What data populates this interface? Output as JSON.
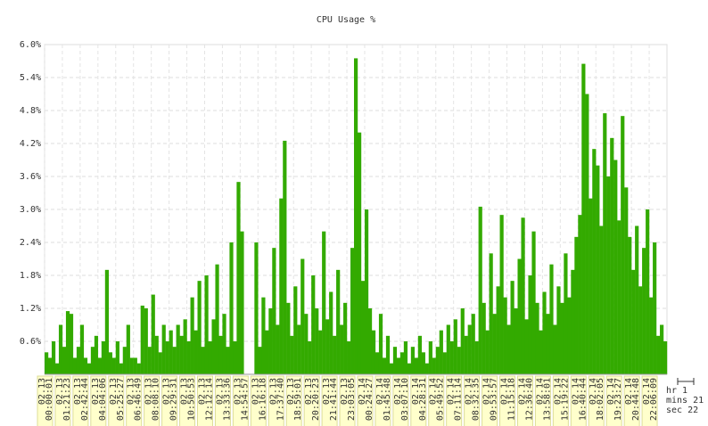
{
  "chart_data": {
    "type": "bar",
    "title": "CPU Usage %",
    "color": "#33aa00",
    "grid": true,
    "ylim": [
      0,
      6
    ],
    "yticks": [
      {
        "value": 0.6,
        "label": "0.6%"
      },
      {
        "value": 1.2,
        "label": "1.2%"
      },
      {
        "value": 1.8,
        "label": "1.8%"
      },
      {
        "value": 2.4,
        "label": "2.4%"
      },
      {
        "value": 3,
        "label": "3.0%"
      },
      {
        "value": 3.6,
        "label": "3.6%"
      },
      {
        "value": 4.2,
        "label": "4.2%"
      },
      {
        "value": 4.8,
        "label": "4.8%"
      },
      {
        "value": 5.4,
        "label": "5.4%"
      },
      {
        "value": 6,
        "label": "6.0%"
      }
    ],
    "xlim": [
      0,
      175
    ],
    "xticks": [
      {
        "value": 0,
        "label": [
          "02.13",
          "00:00:01"
        ]
      },
      {
        "value": 5,
        "label": [
          "02.13",
          "01:21:23"
        ]
      },
      {
        "value": 10,
        "label": [
          "02.13",
          "02:42:44"
        ]
      },
      {
        "value": 15,
        "label": [
          "02.13",
          "04:04:06"
        ]
      },
      {
        "value": 20,
        "label": [
          "02.13",
          "05:25:27"
        ]
      },
      {
        "value": 25,
        "label": [
          "02.13",
          "06:46:49"
        ]
      },
      {
        "value": 30,
        "label": [
          "02.13",
          "08:08:10"
        ]
      },
      {
        "value": 35,
        "label": [
          "02.13",
          "09:29:31"
        ]
      },
      {
        "value": 40,
        "label": [
          "02.13",
          "10:50:53"
        ]
      },
      {
        "value": 45,
        "label": [
          "02.13",
          "12:12:14"
        ]
      },
      {
        "value": 50,
        "label": [
          "02.13",
          "13:33:36"
        ]
      },
      {
        "value": 55,
        "label": [
          "02.13",
          "14:54:57"
        ]
      },
      {
        "value": 60,
        "label": [
          "02.13",
          "16:16:18"
        ]
      },
      {
        "value": 65,
        "label": [
          "02.13",
          "17:37:40"
        ]
      },
      {
        "value": 70,
        "label": [
          "02.13",
          "18:59:01"
        ]
      },
      {
        "value": 75,
        "label": [
          "02.13",
          "20:20:23"
        ]
      },
      {
        "value": 80,
        "label": [
          "02.13",
          "21:41:44"
        ]
      },
      {
        "value": 85,
        "label": [
          "02.13",
          "23:03:05"
        ]
      },
      {
        "value": 90,
        "label": [
          "02.14",
          "00:24:27"
        ]
      },
      {
        "value": 95,
        "label": [
          "02.14",
          "01:45:48"
        ]
      },
      {
        "value": 100,
        "label": [
          "02.14",
          "03:07:10"
        ]
      },
      {
        "value": 105,
        "label": [
          "02.14",
          "04:28:31"
        ]
      },
      {
        "value": 110,
        "label": [
          "02.14",
          "05:49:52"
        ]
      },
      {
        "value": 115,
        "label": [
          "02.14",
          "07:11:14"
        ]
      },
      {
        "value": 120,
        "label": [
          "02.14",
          "08:32:35"
        ]
      },
      {
        "value": 125,
        "label": [
          "02.14",
          "09:53:57"
        ]
      },
      {
        "value": 130,
        "label": [
          "02.14",
          "11:15:18"
        ]
      },
      {
        "value": 135,
        "label": [
          "02.14",
          "12:36:40"
        ]
      },
      {
        "value": 140,
        "label": [
          "02.14",
          "13:58:01"
        ]
      },
      {
        "value": 145,
        "label": [
          "02.14",
          "15:19:22"
        ]
      },
      {
        "value": 150,
        "label": [
          "02.14",
          "16:40:44"
        ]
      },
      {
        "value": 155,
        "label": [
          "02.14",
          "18:02:05"
        ]
      },
      {
        "value": 160,
        "label": [
          "02.14",
          "19:23:27"
        ]
      },
      {
        "value": 165,
        "label": [
          "02.14",
          "20:44:48"
        ]
      },
      {
        "value": 170,
        "label": [
          "02.14",
          "22:06:09"
        ]
      }
    ],
    "values": [
      0.4,
      0.3,
      0.6,
      0.2,
      0.9,
      0.5,
      1.15,
      1.1,
      0.3,
      0.5,
      0.9,
      0.3,
      0.2,
      0.5,
      0.7,
      0.3,
      0.6,
      1.9,
      0.4,
      0.3,
      0.6,
      0.2,
      0.5,
      0.9,
      0.3,
      0.3,
      0.2,
      1.25,
      1.2,
      0.5,
      1.45,
      0.7,
      0.4,
      0.9,
      0.6,
      0.8,
      0.5,
      0.9,
      0.7,
      1.0,
      0.6,
      1.4,
      0.8,
      1.7,
      0.5,
      1.8,
      0.6,
      1.0,
      2.0,
      0.7,
      1.1,
      0.5,
      2.4,
      0.6,
      3.5,
      2.6,
      null,
      null,
      null,
      2.4,
      0.5,
      1.4,
      0.8,
      1.2,
      2.3,
      0.9,
      3.2,
      4.25,
      1.3,
      0.7,
      1.6,
      0.9,
      2.1,
      1.1,
      0.6,
      1.8,
      1.2,
      0.8,
      2.6,
      1.0,
      1.5,
      0.7,
      1.9,
      0.9,
      1.3,
      0.6,
      2.3,
      5.75,
      4.4,
      1.7,
      3.0,
      1.2,
      0.8,
      0.4,
      1.1,
      0.3,
      0.7,
      0.2,
      0.5,
      0.3,
      0.4,
      0.6,
      0.2,
      0.5,
      0.3,
      0.7,
      0.4,
      0.2,
      0.6,
      0.3,
      0.5,
      0.8,
      0.4,
      0.9,
      0.6,
      1.0,
      0.5,
      1.2,
      0.7,
      0.9,
      1.1,
      0.6,
      3.05,
      1.3,
      0.8,
      2.2,
      1.1,
      1.6,
      2.9,
      1.4,
      0.9,
      1.7,
      1.2,
      2.1,
      2.85,
      1.0,
      1.8,
      2.6,
      1.3,
      0.8,
      1.5,
      1.1,
      2.0,
      0.9,
      1.6,
      1.3,
      2.2,
      1.4,
      1.9,
      2.5,
      2.9,
      5.65,
      5.1,
      3.2,
      4.1,
      3.8,
      2.7,
      4.75,
      3.6,
      4.3,
      3.9,
      2.8,
      4.7,
      3.4,
      2.5,
      1.9,
      2.7,
      1.6,
      2.3,
      3.0,
      1.4,
      2.4,
      0.7,
      0.9,
      0.6
    ],
    "scale_labels": [
      "hr 1",
      "mins 21",
      "sec 22"
    ]
  }
}
